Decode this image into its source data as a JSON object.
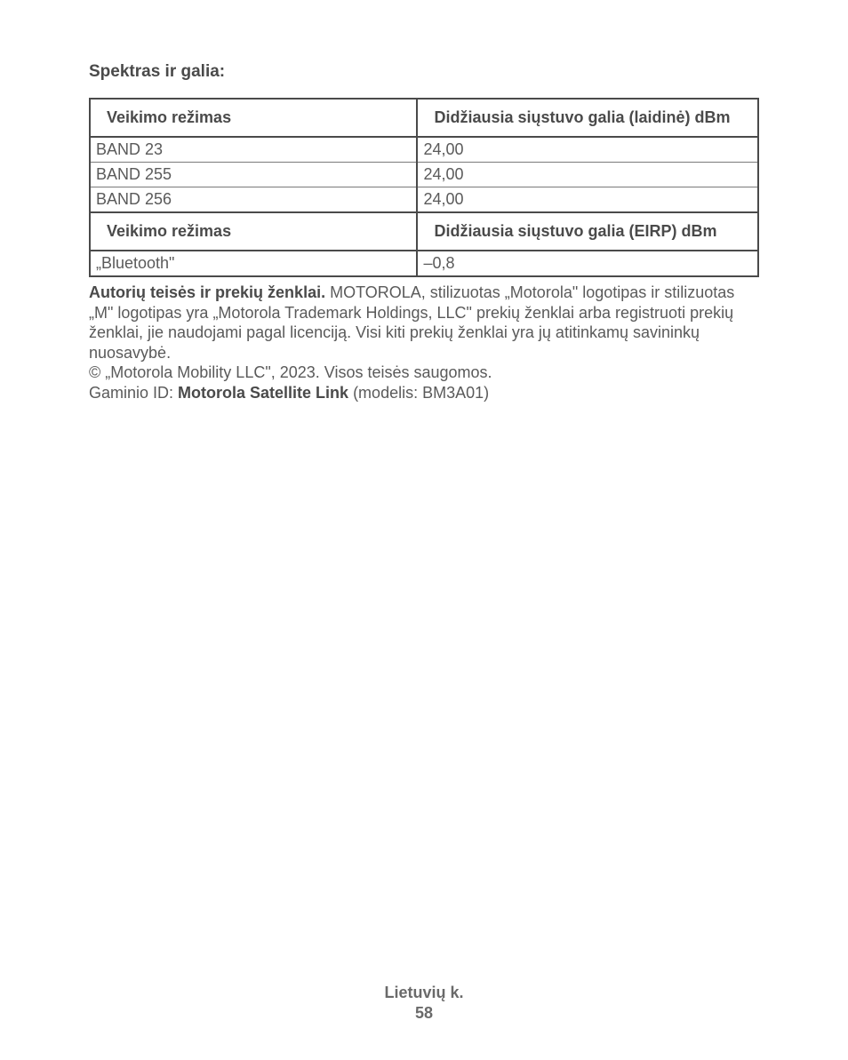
{
  "section_title": "Spektras ir galia:",
  "table1": {
    "header_col1": "Veikimo režimas",
    "header_col2": "Didžiausia siųstuvo galia (laidinė) dBm",
    "rows": [
      {
        "mode": "BAND 23",
        "value": "24,00"
      },
      {
        "mode": "BAND 255",
        "value": "24,00"
      },
      {
        "mode": "BAND 256",
        "value": "24,00"
      }
    ]
  },
  "table2": {
    "header_col1": "Veikimo režimas",
    "header_col2": "Didžiausia siųstuvo galia (EIRP) dBm",
    "rows": [
      {
        "mode": "„Bluetooth\"",
        "value": "–0,8"
      }
    ]
  },
  "copyright": {
    "label": "Autorių teisės ir prekių ženklai.",
    "text": " MOTOROLA, stilizuotas „Motorola\" logotipas ir stilizuotas „M\" logotipas yra „Motorola Trademark Holdings, LLC\" prekių ženklai arba registruoti prekių ženklai, jie naudojami pagal licenciją. Visi kiti prekių ženklai yra jų atitinkamų savininkų nuosavybė.",
    "copyright_line": "© „Motorola Mobility LLC\", 2023. Visos teisės saugomos.",
    "product_prefix": "Gaminio ID: ",
    "product_name": "Motorola Satellite Link",
    "product_suffix": " (modelis: BM3A01)"
  },
  "footer": {
    "language": "Lietuvių k.",
    "page": "58"
  },
  "colors": {
    "text_primary": "#4a4a4a",
    "text_secondary": "#5a5a5a",
    "border": "#4a4a4a",
    "background": "#ffffff"
  },
  "typography": {
    "base_fontsize": 18,
    "title_fontsize": 19
  }
}
